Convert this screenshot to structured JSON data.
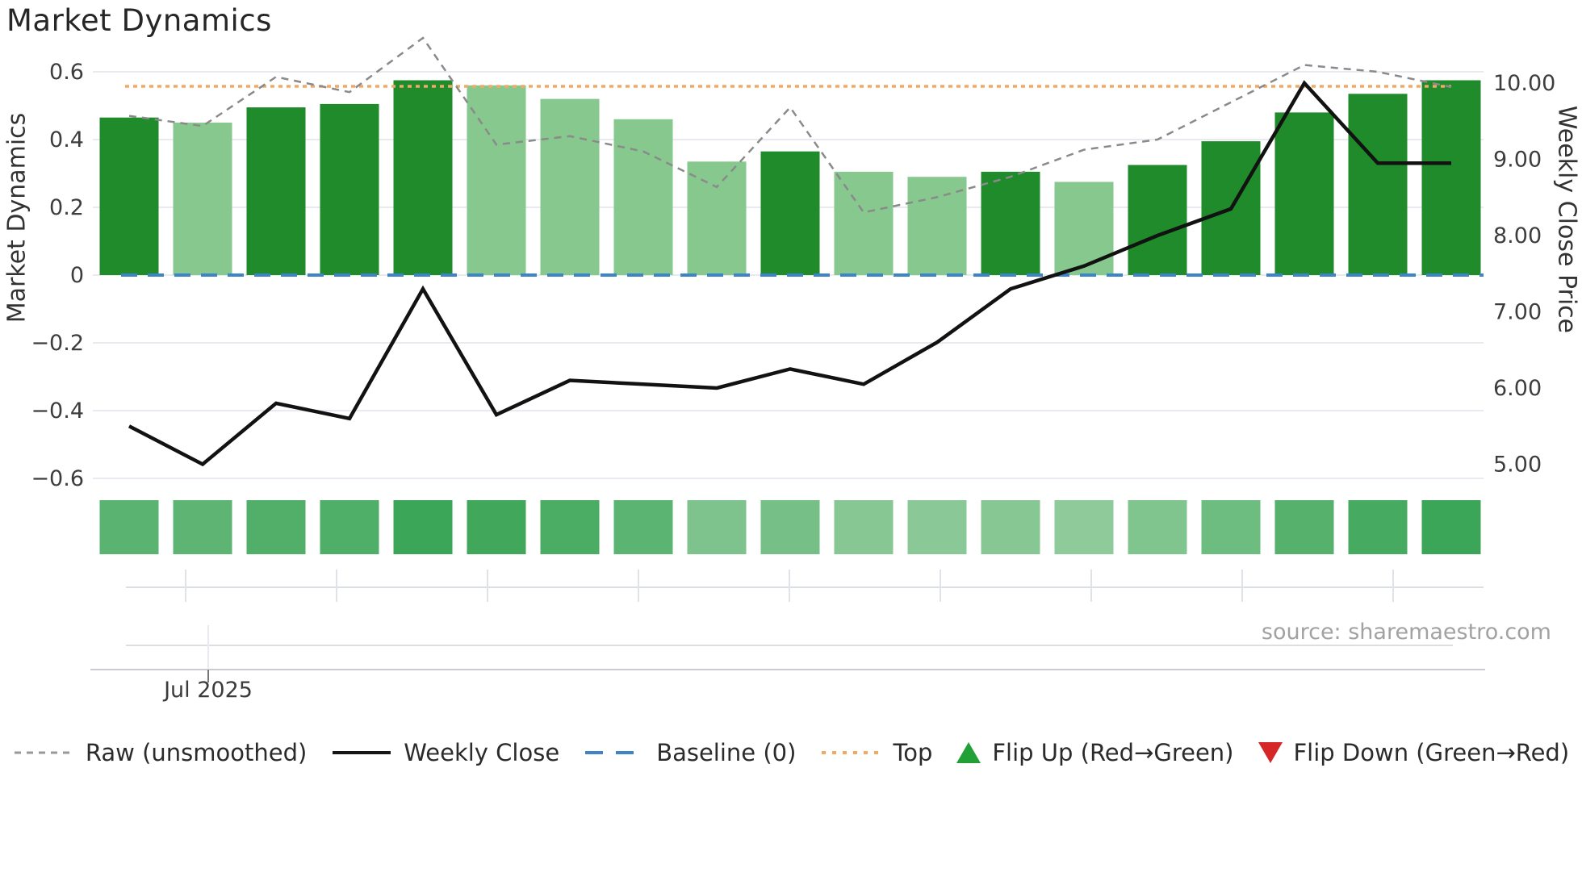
{
  "title": "Market Dynamics",
  "source_note": "source: sharemaestro.com",
  "left_axis": {
    "title": "Market Dynamics",
    "tick_labels": [
      "0.6",
      "0.4",
      "0.2",
      "0",
      "−0.2",
      "−0.4",
      "−0.6"
    ],
    "tick_values": [
      0.6,
      0.4,
      0.2,
      0,
      -0.2,
      -0.4,
      -0.6
    ]
  },
  "right_axis": {
    "title": "Weekly Close Price",
    "tick_labels": [
      "10.00",
      "9.00",
      "8.00",
      "7.00",
      "6.00",
      "5.00"
    ],
    "tick_values": [
      10,
      9,
      8,
      7,
      6,
      5
    ]
  },
  "x_axis": {
    "visible_tick": "Jul 2025"
  },
  "legend": {
    "items": [
      {
        "label": "Raw (unsmoothed)",
        "swatch": "dashed-line",
        "color": "#999999"
      },
      {
        "label": "Weekly Close",
        "swatch": "solid-line",
        "color": "#151515"
      },
      {
        "label": "Baseline (0)",
        "swatch": "longdash-line",
        "color": "#3d85c6"
      },
      {
        "label": "Top",
        "swatch": "dotted-line",
        "color": "#f2a964"
      },
      {
        "label": "Flip Up (Red→Green)",
        "swatch": "triangle-up",
        "color": "#21a038"
      },
      {
        "label": "Flip Down (Green→Red)",
        "swatch": "triangle-down",
        "color": "#d62728"
      }
    ]
  },
  "colors": {
    "bar_dark": "#1f8b2a",
    "bar_light": "#86c88d",
    "raw_line": "#8a8a8a",
    "close_line": "#121212",
    "baseline": "#3d85c6",
    "top_line": "#f2a964",
    "grid": "#e8eaef",
    "axis_line": "#cfd3d8",
    "tick_text": "#3d3d3d"
  },
  "chart_data": {
    "type": "bar+line dual-axis with heat strip",
    "title": "Market Dynamics",
    "x_unit": "week",
    "n_points": 19,
    "x_labels_visible": [
      "Jul 2025"
    ],
    "left_ylim": [
      -0.65,
      0.66
    ],
    "right_ylim": [
      4.4,
      10.4
    ],
    "grid": "horizontal only",
    "legend_position": "bottom center",
    "series": [
      {
        "name": "Market Dynamics (bars)",
        "type": "bar",
        "yaxis": "left",
        "values": [
          0.465,
          0.45,
          0.495,
          0.505,
          0.575,
          0.56,
          0.52,
          0.46,
          0.335,
          0.365,
          0.305,
          0.29,
          0.305,
          0.275,
          0.325,
          0.395,
          0.48,
          0.535,
          0.575
        ],
        "shades": [
          "dark",
          "light",
          "dark",
          "dark",
          "dark",
          "light",
          "light",
          "light",
          "light",
          "dark",
          "light",
          "light",
          "dark",
          "light",
          "dark",
          "dark",
          "dark",
          "dark",
          "dark"
        ]
      },
      {
        "name": "Raw (unsmoothed)",
        "type": "line",
        "style": "dashed",
        "yaxis": "left",
        "values": [
          0.47,
          0.44,
          0.585,
          0.54,
          0.7,
          0.385,
          0.41,
          0.365,
          0.26,
          0.495,
          0.185,
          0.23,
          0.29,
          0.37,
          0.4,
          0.51,
          0.62,
          0.6,
          0.555
        ]
      },
      {
        "name": "Weekly Close",
        "type": "line",
        "style": "solid",
        "yaxis": "right",
        "values": [
          5.5,
          5.0,
          5.8,
          5.6,
          7.3,
          5.65,
          6.1,
          6.05,
          6.0,
          6.25,
          6.05,
          6.6,
          7.3,
          7.6,
          8.0,
          8.35,
          10.0,
          8.95,
          8.95
        ]
      },
      {
        "name": "Baseline (0)",
        "type": "hline",
        "yaxis": "left",
        "value": 0
      },
      {
        "name": "Top",
        "type": "hline",
        "yaxis": "left",
        "value": 0.557
      }
    ],
    "heat_strip": {
      "description": "19 squares shaded by bar intensity",
      "colors": [
        "#5ab370",
        "#5eb573",
        "#52af69",
        "#4fae67",
        "#3ba657",
        "#40a75b",
        "#4bac64",
        "#5bb471",
        "#7ec38d",
        "#76bf87",
        "#86c794",
        "#8ac997",
        "#86c794",
        "#8fca9b",
        "#80c48e",
        "#6dbc80",
        "#56b16d",
        "#46aa60",
        "#3ba657"
      ]
    }
  }
}
